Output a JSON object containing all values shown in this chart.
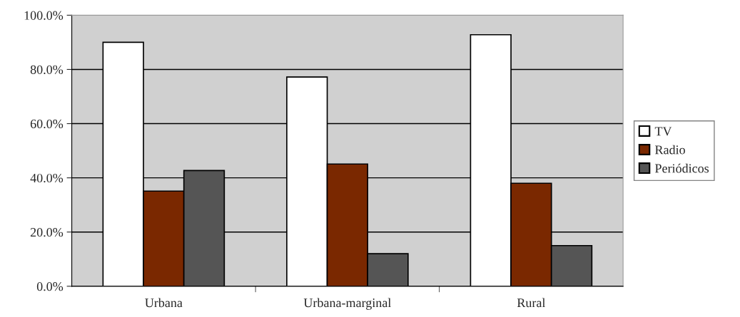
{
  "chart_data": {
    "type": "bar",
    "categories": [
      "Urbana",
      "Urbana-marginal",
      "Rural"
    ],
    "series": [
      {
        "name": "TV",
        "color": "#ffffff",
        "values": [
          90.0,
          77.2,
          92.8
        ]
      },
      {
        "name": "Radio",
        "color": "#7a2800",
        "values": [
          35.1,
          45.1,
          38.0
        ]
      },
      {
        "name": "Periódicos",
        "color": "#555555",
        "values": [
          42.7,
          12.0,
          15.0
        ]
      }
    ],
    "ylim": [
      0,
      100
    ],
    "yticks": [
      {
        "value": 0,
        "label": "0.0%"
      },
      {
        "value": 20,
        "label": "20.0%"
      },
      {
        "value": 40,
        "label": "40.0%"
      },
      {
        "value": 60,
        "label": "60.0%"
      },
      {
        "value": 80,
        "label": "80.0%"
      },
      {
        "value": 100,
        "label": "100.0%"
      }
    ],
    "grid": "y",
    "legend": "right"
  }
}
